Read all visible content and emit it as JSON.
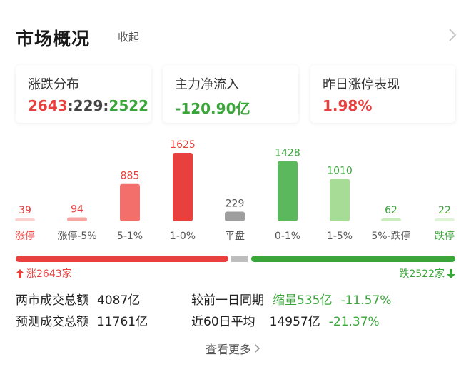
{
  "header": {
    "title": "市场概况",
    "collapse_label": "收起"
  },
  "cards": [
    {
      "label": "涨跌分布",
      "up": "2643",
      "sep1": ":",
      "flat": "229",
      "sep2": ":",
      "down": "2522"
    },
    {
      "label": "主力净流入",
      "value": "-120.90亿"
    },
    {
      "label": "昨日涨停表现",
      "value": "1.98%"
    }
  ],
  "chart_data": {
    "type": "bar",
    "categories": [
      "涨停",
      "涨停-5%",
      "5-1%",
      "1-0%",
      "平盘",
      "0-1%",
      "1-5%",
      "5%-跌停",
      "跌停"
    ],
    "values": [
      39,
      94,
      885,
      1625,
      229,
      1428,
      1010,
      62,
      22
    ],
    "colors": [
      "#fbd1d0",
      "#f7a5a3",
      "#f26f6c",
      "#e8403e",
      "#9e9e9e",
      "#5cb85c",
      "#a6dc95",
      "#c9ecbd",
      "#dff3d6"
    ],
    "category_colors": [
      "#e8403e",
      "#555555",
      "#555555",
      "#555555",
      "#555555",
      "#555555",
      "#555555",
      "#555555",
      "#3aa63a"
    ],
    "value_colors": [
      "#e8403e",
      "#e8403e",
      "#e8403e",
      "#e8403e",
      "#555555",
      "#3aa63a",
      "#3aa63a",
      "#3aa63a",
      "#3aa63a"
    ],
    "title": "",
    "xlabel": "",
    "ylabel": ""
  },
  "distribution": {
    "up_ratio": 0.4828,
    "flat_ratio": 0.0418,
    "down_ratio": 0.4607,
    "up_label": "涨2643家",
    "down_label": "跌2522家"
  },
  "stats": {
    "turnover_label": "两市成交总额",
    "turnover_value": "4087亿",
    "forecast_label": "预测成交总额",
    "forecast_value": "11761亿",
    "compare_label": "较前一日同期",
    "compare_value": "缩量535亿",
    "compare_pct": "-11.57%",
    "avg60_label": "近60日平均",
    "avg60_value": "14957亿",
    "avg60_pct": "-21.37%"
  },
  "footer": {
    "more_label": "查看更多"
  }
}
